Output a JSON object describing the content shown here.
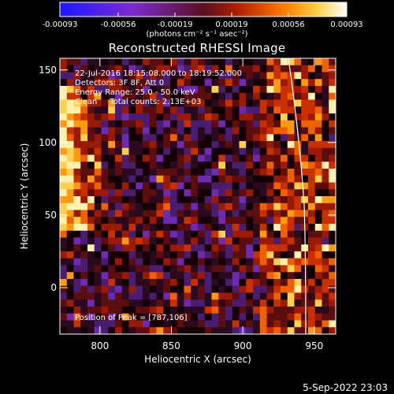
{
  "colorbar": {
    "ticks": [
      "-0.00093",
      "-0.00056",
      "-0.00019",
      "0.00019",
      "0.00056",
      "0.00093"
    ],
    "units": "(photons cm⁻² s⁻¹ asec⁻²)",
    "colors": [
      "#1b16ff",
      "#7d2bd0",
      "#5a0f20",
      "#b02000",
      "#ff7a00",
      "#ffd24a",
      "#ffffff"
    ]
  },
  "title": "Reconstructed RHESSI Image",
  "annotations": {
    "time_range": "22-Jul-2016 18:15:08.000 to 18:19:52.000",
    "detectors": "Detectors: 3F 8F, Att 0",
    "energy": "Energy Range: 25.0 - 50.0 keV",
    "clean": "Clean     Total counts: 2.13E+03",
    "peak": "Position of Peak = [787,106]"
  },
  "axes": {
    "xlabel": "Heliocentric X (arcsec)",
    "ylabel": "Heliocentric Y (arcsec)",
    "xticks": [
      "800",
      "850",
      "900",
      "950"
    ],
    "yticks": [
      "150",
      "100",
      "50",
      "0"
    ],
    "xlim": [
      772,
      965
    ],
    "ylim": [
      -32,
      158
    ]
  },
  "timestamp": "5-Sep-2022 23:03"
}
